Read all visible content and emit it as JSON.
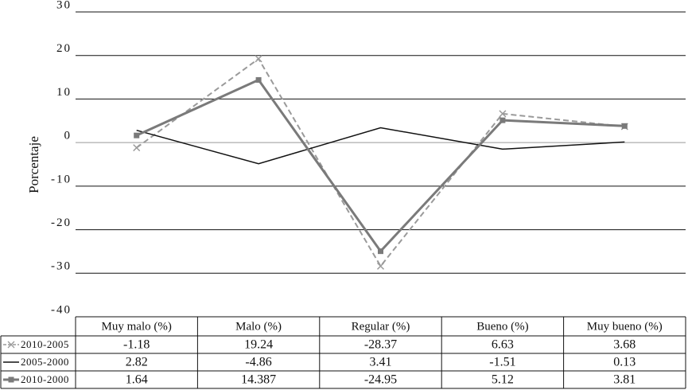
{
  "chart_data": {
    "type": "line",
    "y_label": "Porcentaje",
    "categories": [
      "Muy malo (%)",
      "Malo (%)",
      "Regular (%)",
      "Bueno (%)",
      "Muy bueno (%)"
    ],
    "series": [
      {
        "name": "2010-2005",
        "color": "#9a9a9a",
        "dash": true,
        "marker": "x",
        "values": [
          -1.18,
          19.24,
          -28.37,
          6.63,
          3.68
        ]
      },
      {
        "name": "2005-2000",
        "color": "#111111",
        "dash": false,
        "marker": "none",
        "values": [
          2.82,
          -4.86,
          3.41,
          -1.51,
          0.13
        ]
      },
      {
        "name": "2010-2000",
        "color": "#7a7a7a",
        "dash": false,
        "marker": "square",
        "values": [
          1.64,
          14.387,
          -24.95,
          5.12,
          3.81
        ]
      }
    ],
    "ylim": [
      -40,
      30
    ],
    "yticks": [
      -40,
      -30,
      -20,
      -10,
      0,
      10,
      20,
      30
    ],
    "grid": true
  }
}
